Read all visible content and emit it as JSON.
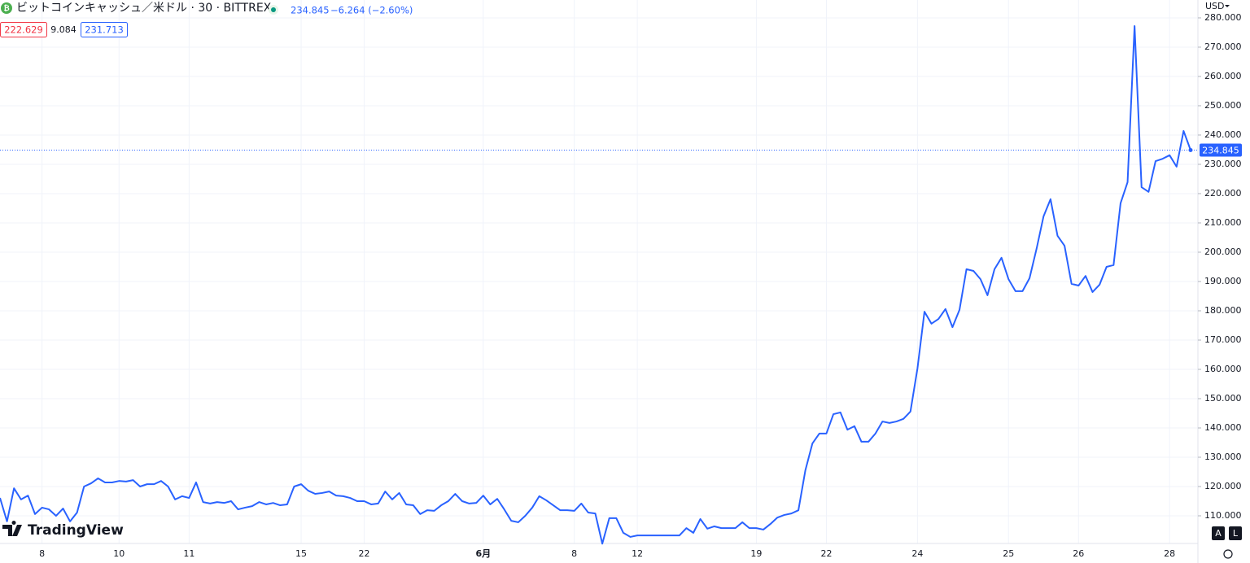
{
  "header": {
    "title": "ビットコインキャッシュ／米ドル · 30 · BITTREX",
    "change": "−6.264 (−2.60%)",
    "indicators": [
      222.629,
      9.084,
      231.713
    ],
    "currency": "USD",
    "brand": "TradingView",
    "buttons": [
      "A",
      "L"
    ]
  },
  "chart_data": {
    "type": "line",
    "last_price": 234.845,
    "ylim": [
      100.56,
      286.1
    ],
    "yticks": [
      {
        "value": 110,
        "label": "110.000"
      },
      {
        "value": 120,
        "label": "120.000"
      },
      {
        "value": 130,
        "label": "130.000"
      },
      {
        "value": 140,
        "label": "140.000"
      },
      {
        "value": 150,
        "label": "150.000"
      },
      {
        "value": 160,
        "label": "160.000"
      },
      {
        "value": 170,
        "label": "170.000"
      },
      {
        "value": 180,
        "label": "180.000"
      },
      {
        "value": 190,
        "label": "190.000"
      },
      {
        "value": 200,
        "label": "200.000"
      },
      {
        "value": 210,
        "label": "210.000"
      },
      {
        "value": 220,
        "label": "220.000"
      },
      {
        "value": 230,
        "label": "230.000"
      },
      {
        "value": 240,
        "label": "240.000"
      },
      {
        "value": 250,
        "label": "250.000"
      },
      {
        "value": 260,
        "label": "260.000"
      },
      {
        "value": 270,
        "label": "270.000"
      },
      {
        "value": 280,
        "label": "280.000"
      }
    ],
    "grid": true,
    "categories": [
      null,
      null,
      null,
      null,
      null,
      null,
      "8",
      null,
      null,
      null,
      null,
      null,
      null,
      null,
      null,
      null,
      null,
      "10",
      null,
      null,
      null,
      null,
      null,
      null,
      null,
      null,
      null,
      "11",
      null,
      null,
      null,
      null,
      null,
      null,
      null,
      null,
      null,
      null,
      null,
      null,
      null,
      null,
      null,
      "15",
      null,
      null,
      null,
      null,
      null,
      null,
      null,
      null,
      "22",
      null,
      null,
      null,
      null,
      null,
      null,
      null,
      null,
      null,
      null,
      null,
      null,
      null,
      null,
      null,
      null,
      "6月",
      null,
      null,
      null,
      null,
      null,
      null,
      null,
      null,
      null,
      null,
      null,
      null,
      "8",
      null,
      null,
      null,
      null,
      null,
      null,
      null,
      null,
      "12",
      null,
      null,
      null,
      null,
      null,
      null,
      null,
      null,
      null,
      null,
      null,
      null,
      null,
      null,
      null,
      null,
      "19",
      null,
      null,
      null,
      null,
      null,
      null,
      null,
      null,
      null,
      "22",
      null,
      null,
      null,
      null,
      null,
      null,
      null,
      null,
      null,
      null,
      null,
      null,
      "24",
      null,
      null,
      null,
      null,
      null,
      null,
      null,
      null,
      null,
      null,
      null,
      null,
      "25",
      null,
      null,
      null,
      null,
      null,
      null,
      null,
      null,
      null,
      "26",
      null,
      null,
      null,
      null,
      null,
      null,
      null,
      null,
      null,
      null,
      null,
      null,
      "28",
      null,
      null,
      null
    ],
    "series": [
      {
        "color": "#2962ff",
        "values": [
          116.1,
          108.1,
          119.4,
          115.6,
          116.9,
          110.6,
          112.8,
          112.2,
          110.0,
          112.5,
          108.1,
          111.1,
          120.0,
          121.1,
          122.8,
          121.4,
          121.4,
          121.9,
          121.7,
          122.2,
          120.0,
          120.8,
          120.8,
          121.9,
          120.0,
          115.6,
          116.7,
          116.1,
          121.4,
          114.7,
          114.2,
          114.7,
          114.4,
          115.0,
          112.2,
          112.8,
          113.3,
          114.7,
          113.9,
          114.4,
          113.6,
          113.9,
          120.0,
          120.8,
          118.6,
          117.5,
          117.8,
          118.3,
          116.9,
          116.7,
          116.1,
          115.0,
          115.0,
          113.9,
          114.2,
          118.3,
          115.6,
          117.8,
          113.9,
          113.6,
          110.6,
          111.9,
          111.7,
          113.6,
          115.0,
          117.5,
          115.0,
          114.2,
          114.4,
          116.9,
          113.9,
          115.8,
          112.2,
          108.3,
          107.8,
          110.0,
          112.8,
          116.7,
          115.3,
          113.6,
          111.9,
          111.9,
          111.7,
          114.2,
          111.1,
          110.8,
          100.5,
          109.2,
          109.2,
          104.2,
          102.8,
          103.3,
          103.3,
          103.3,
          103.3,
          103.3,
          103.3,
          103.3,
          105.8,
          104.2,
          108.9,
          105.6,
          106.4,
          105.8,
          105.8,
          105.8,
          107.8,
          105.8,
          105.8,
          105.3,
          107.2,
          109.4,
          110.3,
          110.8,
          111.9,
          125.6,
          134.7,
          138.1,
          138.1,
          144.7,
          145.3,
          139.4,
          140.6,
          135.3,
          135.3,
          138.1,
          142.2,
          141.7,
          142.2,
          143.1,
          145.6,
          160.3,
          179.7,
          175.6,
          177.2,
          180.6,
          174.4,
          180.3,
          194.2,
          193.6,
          190.8,
          185.3,
          194.2,
          198.1,
          190.8,
          186.7,
          186.7,
          191.1,
          201.1,
          212.2,
          218.1,
          205.6,
          202.2,
          189.2,
          188.6,
          191.9,
          186.4,
          188.9,
          195.0,
          195.6,
          216.7,
          223.9,
          277.2,
          222.2,
          220.6,
          231.1,
          231.9,
          233.1,
          229.2,
          241.4,
          234.845
        ]
      }
    ]
  }
}
